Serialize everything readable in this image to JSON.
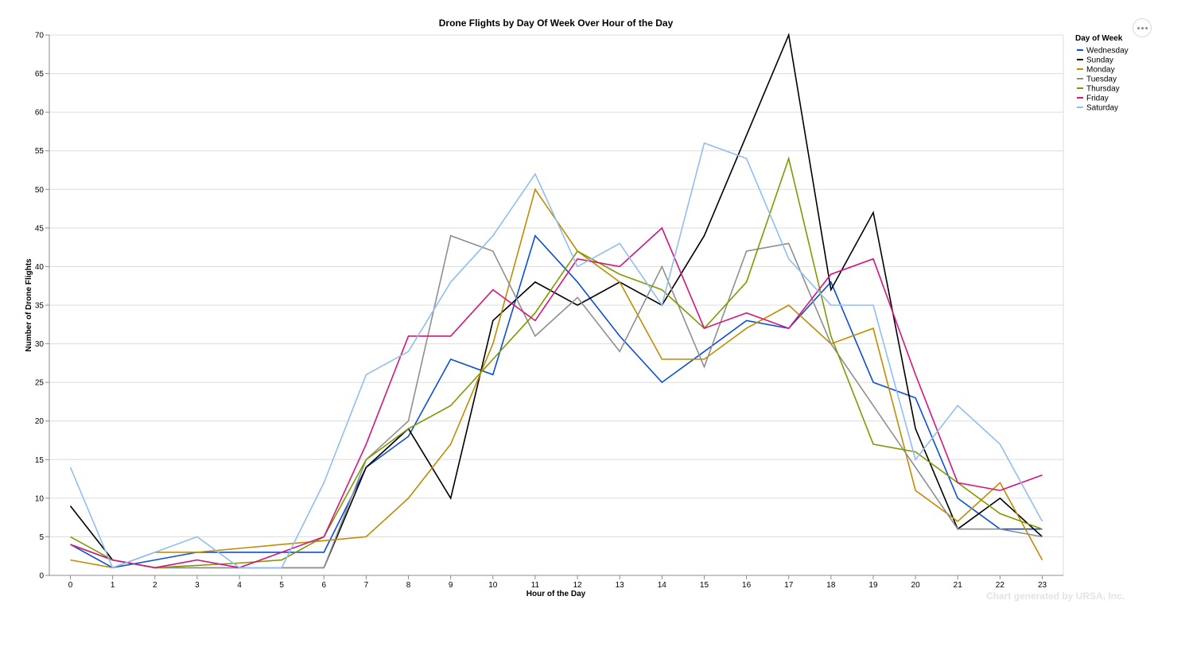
{
  "chart_data": {
    "type": "line",
    "title": "Drone Flights by Day Of Week Over Hour of the Day",
    "xlabel": "Hour of the Day",
    "ylabel": "Number of Drone Flights",
    "x": [
      0,
      1,
      2,
      3,
      4,
      5,
      6,
      7,
      8,
      9,
      10,
      11,
      12,
      13,
      14,
      15,
      16,
      17,
      18,
      19,
      20,
      21,
      22,
      23
    ],
    "xlim": [
      0,
      23
    ],
    "ylim": [
      0,
      70
    ],
    "yticks": [
      0,
      5,
      10,
      15,
      20,
      25,
      30,
      35,
      40,
      45,
      50,
      55,
      60,
      65,
      70
    ],
    "grid": true,
    "legend": {
      "title": "Day of Week",
      "placement": "top-right"
    },
    "series": [
      {
        "name": "Wednesday",
        "color": "#0b4fd6",
        "values": [
          4,
          1,
          2,
          3,
          3,
          3,
          3,
          14,
          18,
          28,
          26,
          44,
          38,
          31,
          25,
          29,
          33,
          32,
          38,
          25,
          23,
          10,
          6,
          6
        ]
      },
      {
        "name": "Sunday",
        "color": "#000000",
        "values": [
          9,
          2,
          1,
          1,
          1,
          1,
          1,
          14,
          19,
          10,
          33,
          38,
          35,
          38,
          35,
          44,
          57,
          70,
          37,
          47,
          19,
          6,
          10,
          5
        ]
      },
      {
        "name": "Monday",
        "color": "#c48a00",
        "values": [
          2,
          1,
          3,
          3,
          3.5,
          4,
          4.5,
          5,
          10,
          17,
          30,
          50,
          42,
          38,
          28,
          28,
          32,
          35,
          30,
          32,
          11,
          7,
          12,
          2
        ]
      },
      {
        "name": "Tuesday",
        "color": "#8f8f8f",
        "values": [
          4,
          2,
          1,
          1,
          1,
          1,
          1,
          15,
          20,
          44,
          42,
          31,
          36,
          29,
          40,
          27,
          42,
          43,
          30,
          22,
          14,
          6,
          6,
          5
        ]
      },
      {
        "name": "Thursday",
        "color": "#7f9a00",
        "values": [
          5,
          2,
          1,
          1.3,
          1.6,
          2,
          5,
          15,
          19,
          22,
          28,
          34,
          42,
          39,
          37,
          32,
          38,
          54,
          31,
          17,
          16,
          12,
          8,
          6
        ]
      },
      {
        "name": "Friday",
        "color": "#d4157f",
        "values": [
          4,
          2,
          1,
          2,
          1,
          3,
          5,
          17,
          31,
          31,
          37,
          33,
          41,
          40,
          45,
          32,
          34,
          32,
          39,
          41,
          26,
          12,
          11,
          13
        ]
      },
      {
        "name": "Saturday",
        "color": "#92bdf2",
        "values": [
          14,
          1,
          3,
          5,
          1,
          1,
          12,
          26,
          29,
          38,
          44,
          52,
          40,
          43,
          35,
          56,
          54,
          41,
          35,
          35,
          15,
          22,
          17,
          7
        ]
      }
    ]
  },
  "credit": "Chart generated by URSA, Inc.",
  "menu": {
    "icon": "more-options-icon"
  }
}
